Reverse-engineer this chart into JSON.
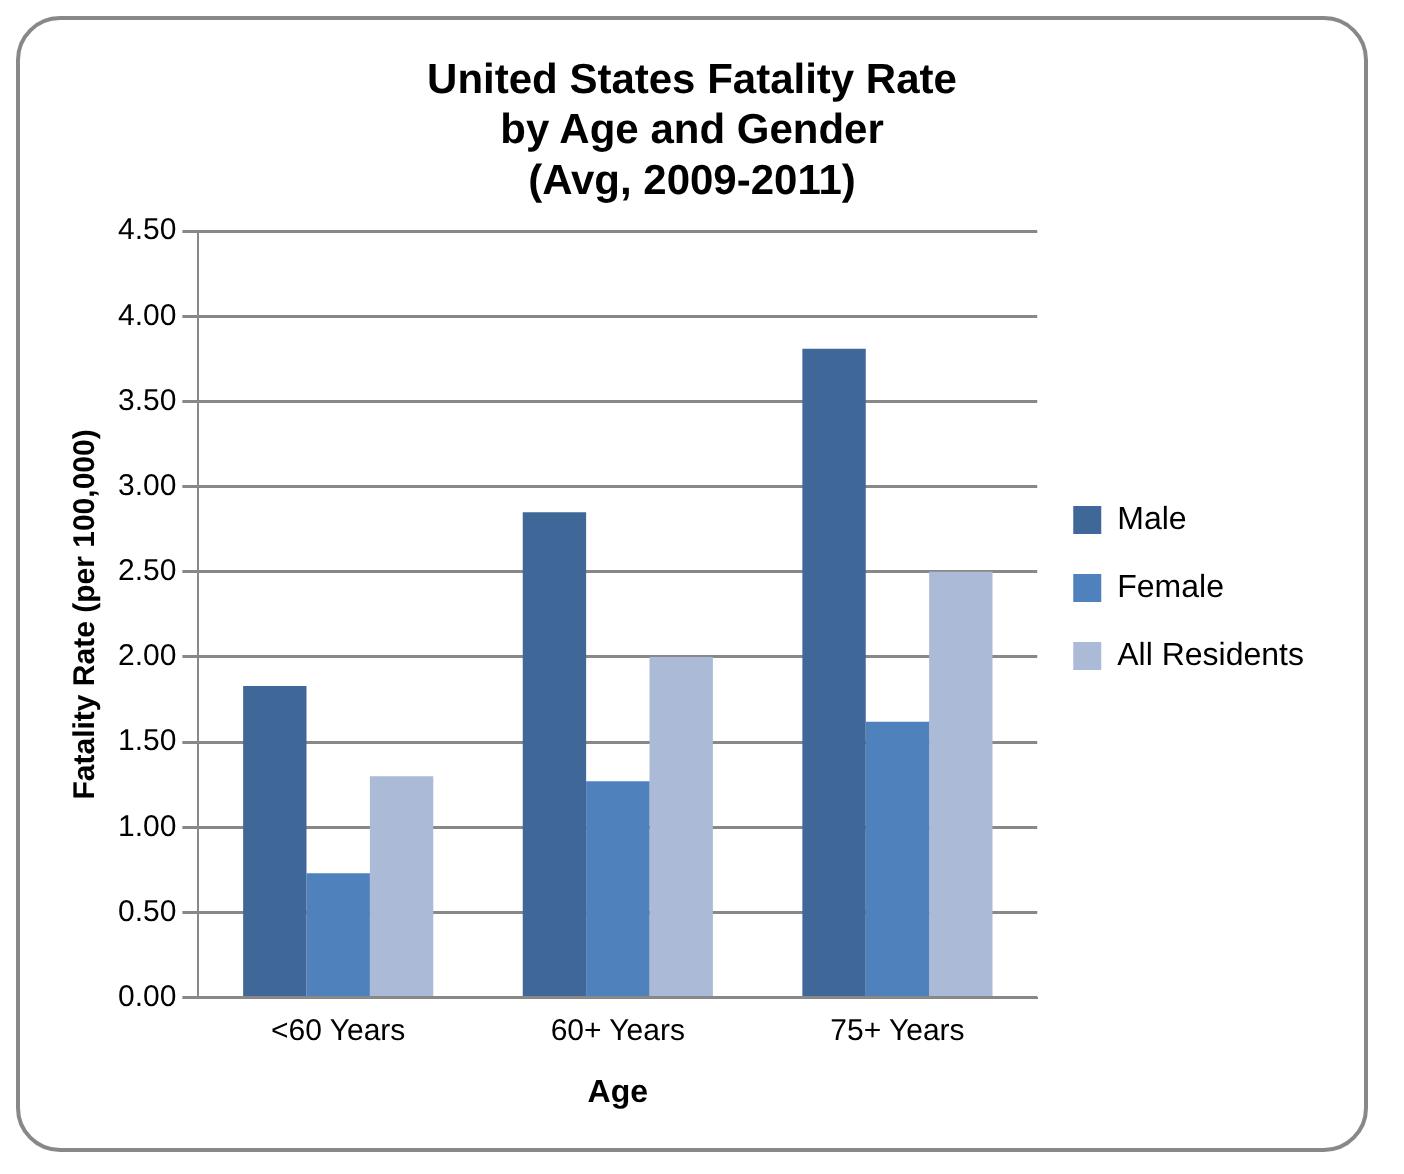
{
  "chart_data": {
    "type": "bar",
    "title": [
      "United States Fatality Rate",
      "by Age and Gender",
      "(Avg, 2009-2011)"
    ],
    "xlabel": "Age",
    "ylabel": "Fatality Rate (per 100,000)",
    "categories": [
      "<60 Years",
      "60+ Years",
      "75+ Years"
    ],
    "series": [
      {
        "name": "Male",
        "color": "#3f6899",
        "values": [
          1.83,
          2.85,
          3.81
        ]
      },
      {
        "name": "Female",
        "color": "#4f81bd",
        "values": [
          0.73,
          1.27,
          1.62
        ]
      },
      {
        "name": "All Residents",
        "color": "#aabad7",
        "values": [
          1.3,
          2.0,
          2.5
        ]
      }
    ],
    "ylim": [
      0,
      4.5
    ],
    "yticks": [
      {
        "value": 0,
        "label": "0.00"
      },
      {
        "value": 0.5,
        "label": "0.50"
      },
      {
        "value": 1,
        "label": "1.00"
      },
      {
        "value": 1.5,
        "label": "1.50"
      },
      {
        "value": 2,
        "label": "2.00"
      },
      {
        "value": 2.5,
        "label": "2.50"
      },
      {
        "value": 3,
        "label": "3.00"
      },
      {
        "value": 3.5,
        "label": "3.50"
      },
      {
        "value": 4,
        "label": "4.00"
      },
      {
        "value": 4.5,
        "label": "4.50"
      }
    ],
    "grid": "y",
    "legend": "right"
  }
}
